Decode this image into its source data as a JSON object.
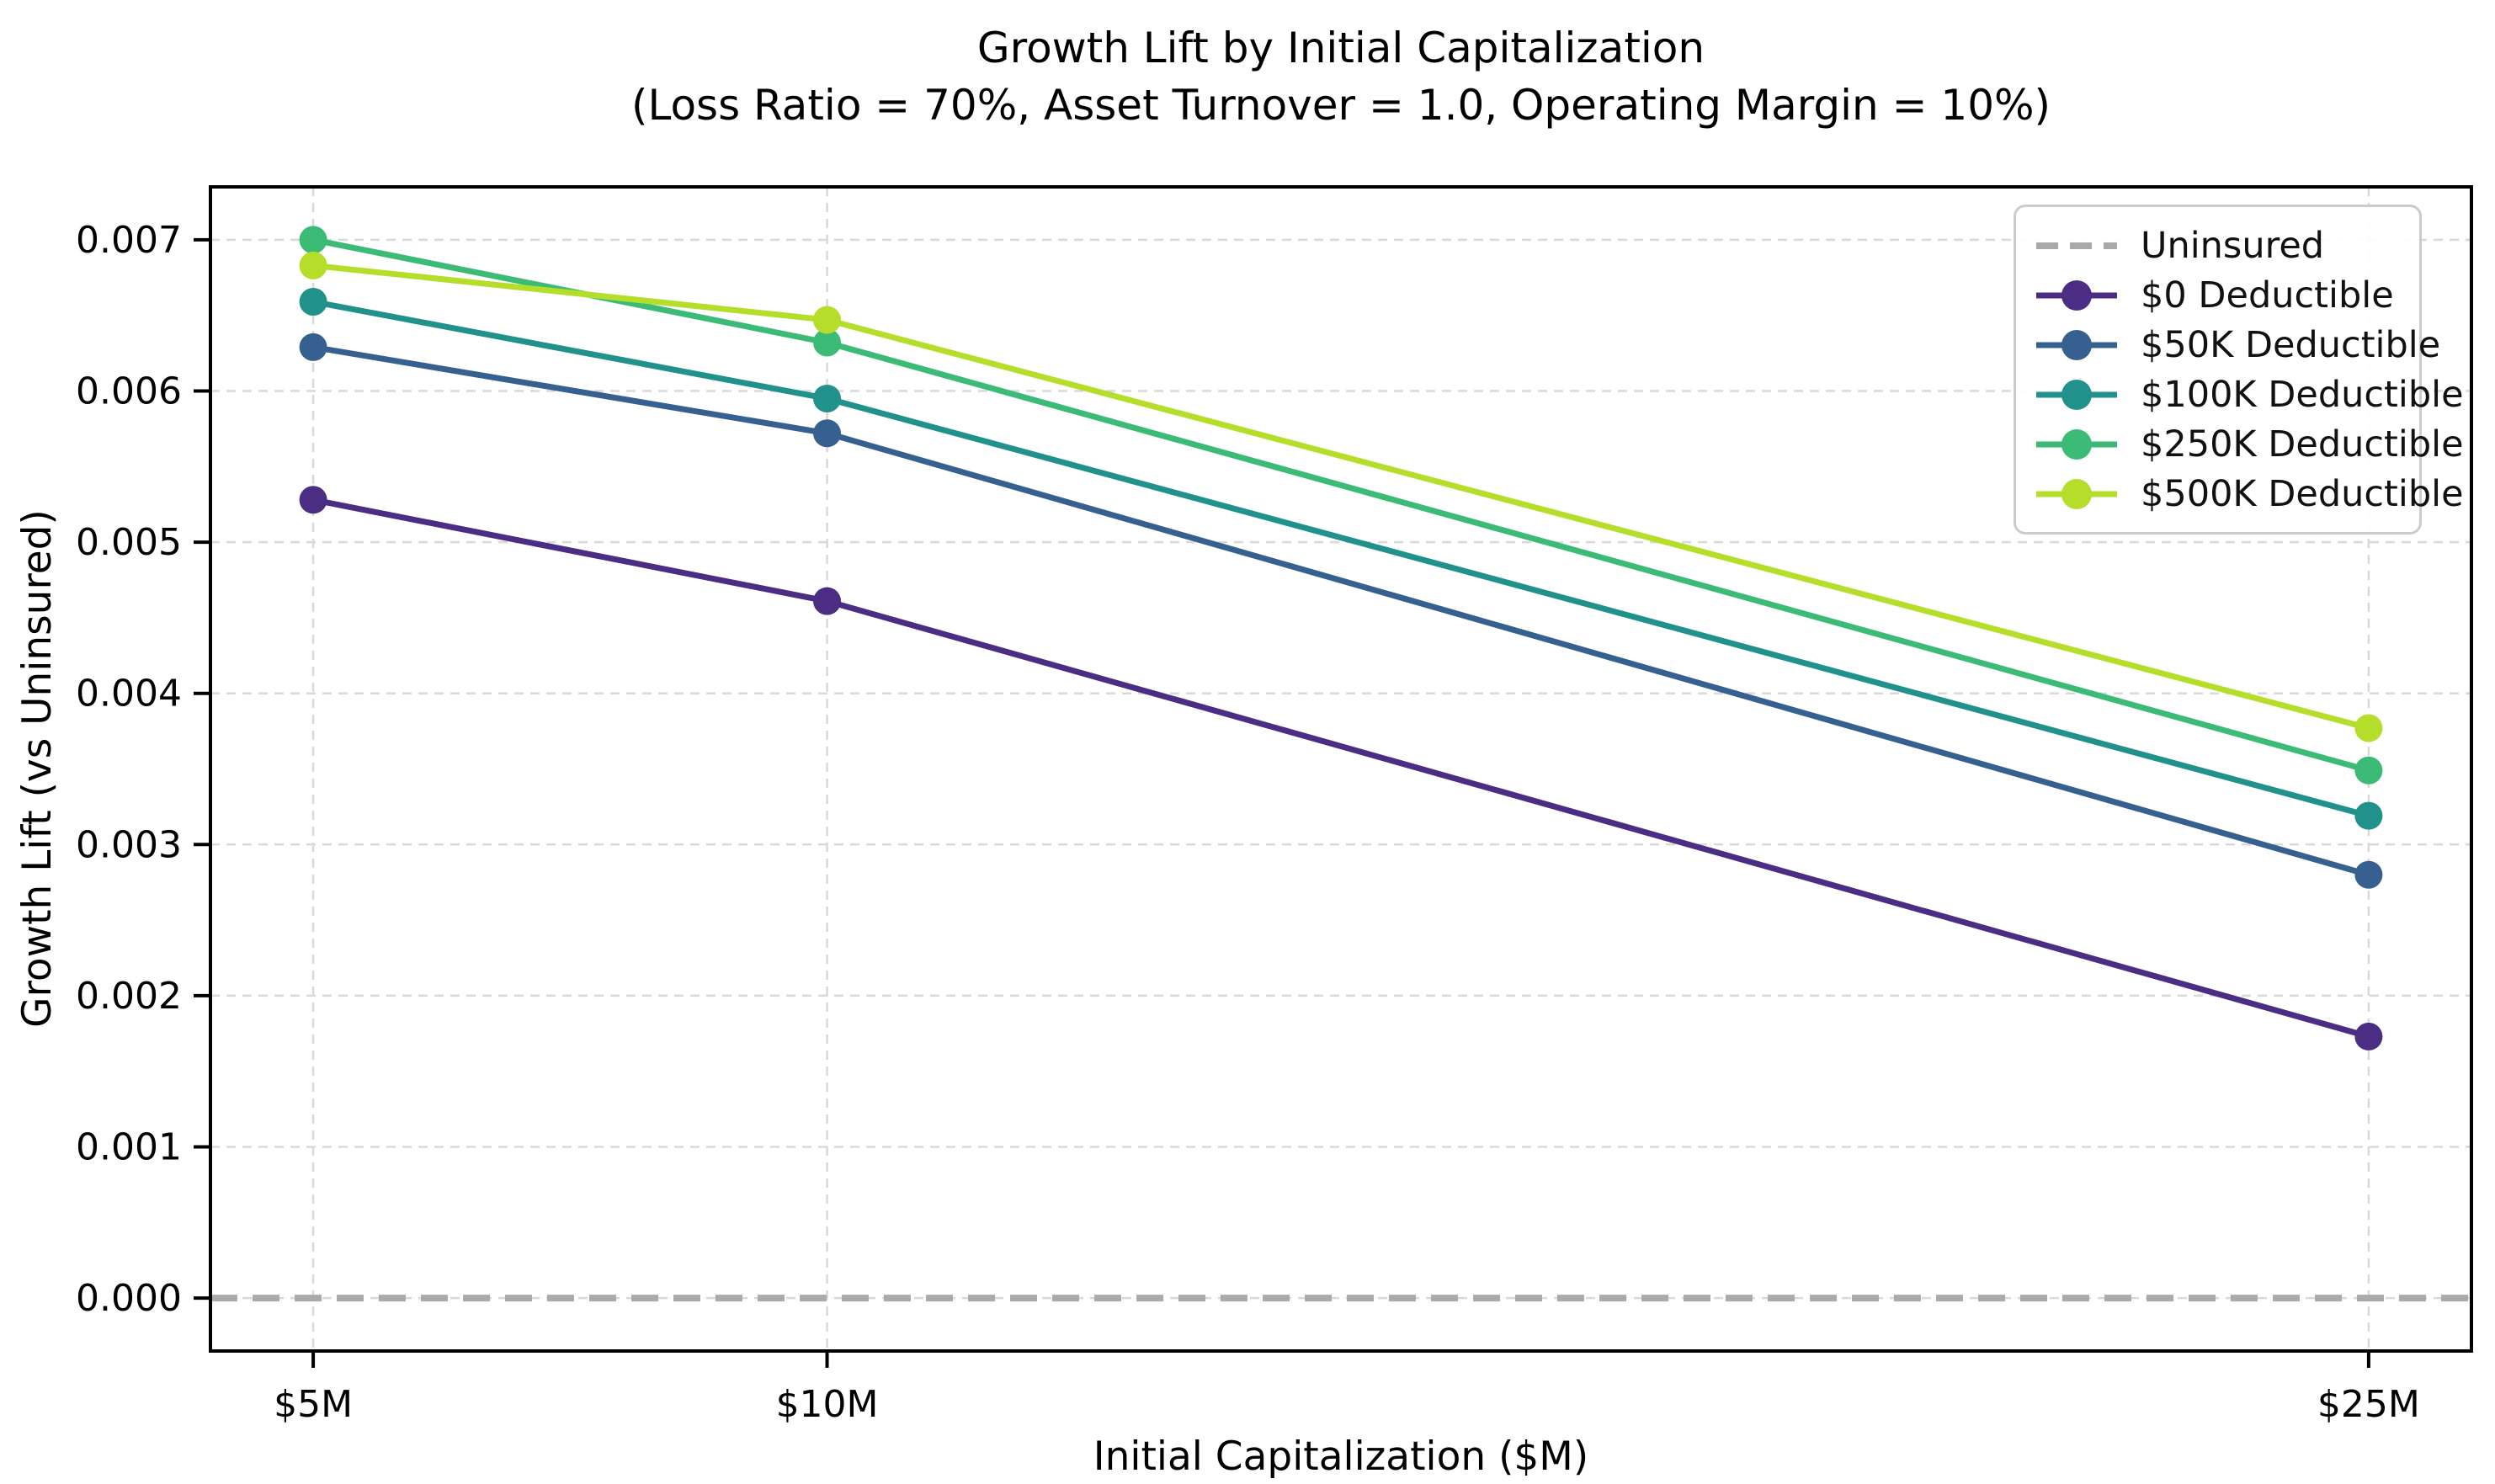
{
  "figure": {
    "title": "Growth Lift by Initial Capitalization",
    "subtitle": "(Loss Ratio = 70%, Asset Turnover = 1.0, Operating Margin = 10%)"
  },
  "chart_data": {
    "type": "line",
    "title": "Growth Lift by Initial Capitalization",
    "subtitle": "(Loss Ratio = 70%, Asset Turnover = 1.0, Operating Margin = 10%)",
    "xlabel": "Initial Capitalization ($M)",
    "ylabel": "Growth Lift (vs Uninsured)",
    "x": [
      5,
      10,
      25
    ],
    "x_tick_labels": [
      "$5M",
      "$10M",
      "$25M"
    ],
    "xlim": [
      4,
      26
    ],
    "ylim": [
      -0.00035,
      0.00735
    ],
    "y_ticks": [
      0.0,
      0.001,
      0.002,
      0.003,
      0.004,
      0.005,
      0.006,
      0.007
    ],
    "y_tick_format_decimals": 3,
    "grid": true,
    "legend_position": "upper right",
    "colors": {
      "grid": "#d9d9d9",
      "frame": "#000000",
      "uninsured": "#aaaaaa"
    },
    "series": [
      {
        "name": "Uninsured",
        "values": [
          0.0,
          0.0,
          0.0
        ],
        "color": "#aaaaaa",
        "style": "dashed",
        "marker": false,
        "full_width": true
      },
      {
        "name": "$0 Deductible",
        "values": [
          0.00528,
          0.00461,
          0.00173
        ],
        "color": "#4b2d83",
        "style": "solid",
        "marker": true
      },
      {
        "name": "$50K Deductible",
        "values": [
          0.00629,
          0.00572,
          0.0028
        ],
        "color": "#36608f",
        "style": "solid",
        "marker": true
      },
      {
        "name": "$100K Deductible",
        "values": [
          0.00659,
          0.00595,
          0.00319
        ],
        "color": "#21918c",
        "style": "solid",
        "marker": true
      },
      {
        "name": "$250K Deductible",
        "values": [
          0.007,
          0.00632,
          0.00349
        ],
        "color": "#3bbb75",
        "style": "solid",
        "marker": true
      },
      {
        "name": "$500K Deductible",
        "values": [
          0.00683,
          0.00647,
          0.00377
        ],
        "color": "#b5de2b",
        "style": "solid",
        "marker": true
      }
    ]
  }
}
